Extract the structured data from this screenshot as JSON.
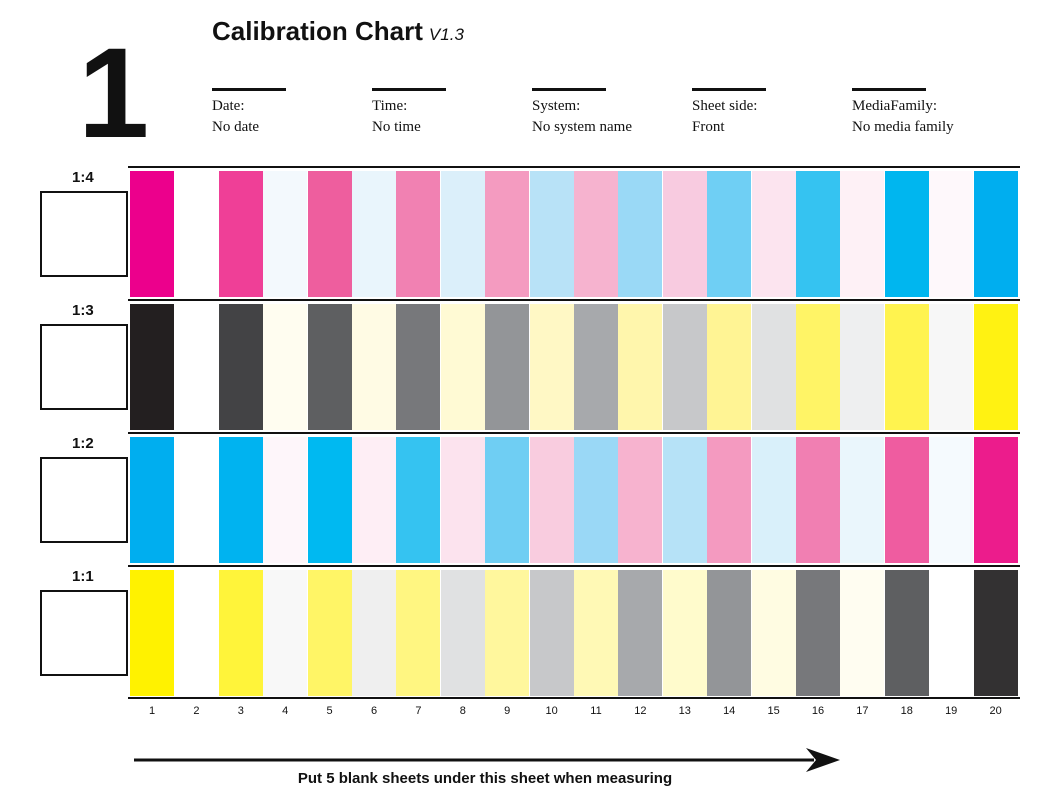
{
  "sheet_number": "1",
  "title": "Calibration Chart",
  "version": "V1.3",
  "fields": [
    {
      "label": "Date:",
      "value": "No date"
    },
    {
      "label": "Time:",
      "value": "No time"
    },
    {
      "label": "System:",
      "value": "No system name"
    },
    {
      "label": "Sheet side:",
      "value": "Front"
    },
    {
      "label": "MediaFamily:",
      "value": "No media family"
    }
  ],
  "strips": [
    {
      "label": "1:4",
      "colors": [
        "#ec008c",
        "#ffffff",
        "#ef3f97",
        "#f3f9fd",
        "#ee5e9e",
        "#e9f5fc",
        "#f181b2",
        "#dbeffa",
        "#f49bc0",
        "#b8e2f7",
        "#f6b3cf",
        "#9ad9f6",
        "#f8cbe0",
        "#6fcff4",
        "#fce4ef",
        "#35c3f1",
        "#fef1f6",
        "#00b6ef",
        "#fef8fb",
        "#00aeef"
      ]
    },
    {
      "label": "1:3",
      "colors": [
        "#231f20",
        "#ffffff",
        "#434345",
        "#fffdf0",
        "#5e5f61",
        "#fffbe4",
        "#77787b",
        "#fffad4",
        "#939598",
        "#fff8c5",
        "#a7a9ac",
        "#fff6ac",
        "#c7c8ca",
        "#fff494",
        "#e0e1e2",
        "#fff466",
        "#eeeff0",
        "#fff34f",
        "#f7f7f7",
        "#fff212"
      ]
    },
    {
      "label": "1:2",
      "colors": [
        "#00aeef",
        "#ffffff",
        "#00b3f0",
        "#fef6fa",
        "#00b9f1",
        "#feeef5",
        "#35c3f1",
        "#fce3ee",
        "#6fcef3",
        "#f9ccdf",
        "#9ad8f6",
        "#f7b3cf",
        "#b6e2f7",
        "#f49ac0",
        "#d9f0fa",
        "#f17fb2",
        "#eaf6fc",
        "#ef5ca0",
        "#f5fafe",
        "#ec1c8c"
      ]
    },
    {
      "label": "1:1",
      "colors": [
        "#fff200",
        "#ffffff",
        "#fff43a",
        "#f8f8f8",
        "#fff566",
        "#efefef",
        "#fff681",
        "#e0e1e2",
        "#fff79d",
        "#c7c8ca",
        "#fff9b5",
        "#a7a9ac",
        "#fffbcc",
        "#939598",
        "#fffce2",
        "#77787b",
        "#fffdf1",
        "#5e5f61",
        "#ffffff",
        "#333132"
      ]
    }
  ],
  "column_numbers": [
    "1",
    "2",
    "3",
    "4",
    "5",
    "6",
    "7",
    "8",
    "9",
    "10",
    "11",
    "12",
    "13",
    "14",
    "15",
    "16",
    "17",
    "18",
    "19",
    "20"
  ],
  "footer_note": "Put 5 blank sheets under this sheet when measuring"
}
